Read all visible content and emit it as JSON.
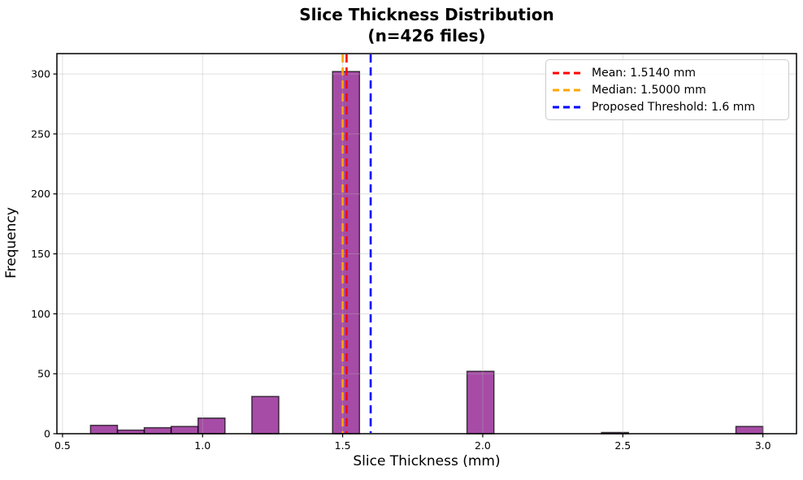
{
  "title": {
    "line1": "Slice Thickness Distribution",
    "line2": "(n=426 files)"
  },
  "axes": {
    "xlabel": "Slice Thickness (mm)",
    "ylabel": "Frequency"
  },
  "chart_data": {
    "type": "bar",
    "title": "Slice Thickness Distribution (n=426 files)",
    "xlabel": "Slice Thickness (mm)",
    "ylabel": "Frequency",
    "n_total": 426,
    "bin_start": 0.6,
    "bin_width": 0.096,
    "bin_counts": [
      7,
      3,
      5,
      6,
      13,
      0,
      31,
      0,
      0,
      302,
      0,
      0,
      0,
      0,
      52,
      0,
      0,
      0,
      0,
      1,
      0,
      0,
      0,
      0,
      6
    ],
    "xlim": [
      0.48,
      3.12
    ],
    "ylim": [
      0,
      317
    ],
    "xticks": [
      0.5,
      1.0,
      1.5,
      2.0,
      2.5,
      3.0
    ],
    "xtick_labels": [
      "0.5",
      "1.0",
      "1.5",
      "2.0",
      "2.5",
      "3.0"
    ],
    "yticks": [
      0,
      50,
      100,
      150,
      200,
      250,
      300
    ],
    "ytick_labels": [
      "0",
      "50",
      "100",
      "150",
      "200",
      "250",
      "300"
    ],
    "grid": true,
    "legend_position": "upper right",
    "bar_fill": "rgba(128,0,128,0.7)",
    "bar_edge": "rgba(0,0,0,0.7)",
    "grid_color": "rgba(176,176,176,0.4)",
    "vlines": [
      {
        "name": "mean-line",
        "x": 1.514,
        "color": "#ff0000",
        "label": "Mean: 1.5140 mm"
      },
      {
        "name": "median-line",
        "x": 1.5,
        "color": "#ffa500",
        "label": "Median: 1.5000 mm"
      },
      {
        "name": "threshold-line",
        "x": 1.6,
        "color": "#0000ff",
        "label": "Proposed Threshold: 1.6 mm"
      }
    ]
  }
}
